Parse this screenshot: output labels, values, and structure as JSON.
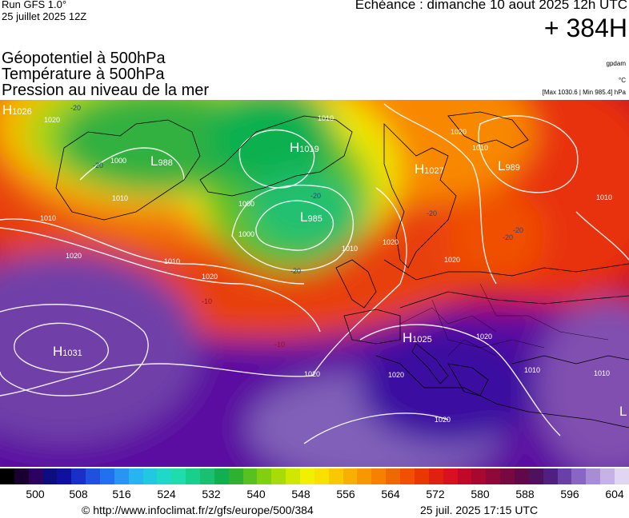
{
  "header": {
    "run": "Run GFS 1.0°",
    "run_date": "25 juillet 2025 12Z",
    "echeance": "Echéance : dimanche 10 aout 2025 12h UTC",
    "lead": "+ 384H",
    "title1": "Géopotentiel à 500hPa",
    "title2": "Température à 500hPa",
    "title3": "Pression au niveau de la mer",
    "unit_gp": "gpdam",
    "unit_t": "°C",
    "minmax": "[Max 1030.6 | Min 985.4] hPa"
  },
  "map": {
    "pressure_centers": [
      {
        "type": "H",
        "value": "1026"
      },
      {
        "type": "L",
        "value": "988"
      },
      {
        "type": "H",
        "value": "1019"
      },
      {
        "type": "L",
        "value": "985"
      },
      {
        "type": "H",
        "value": "1027"
      },
      {
        "type": "L",
        "value": "989"
      },
      {
        "type": "H",
        "value": "1031"
      },
      {
        "type": "H",
        "value": "1025"
      },
      {
        "type": "L",
        "value": ""
      }
    ],
    "isobar_labels": [
      "1010",
      "1010",
      "1010",
      "1000",
      "1020",
      "1020",
      "1000",
      "1010",
      "1010",
      "1020",
      "1020",
      "1020",
      "1010",
      "1010",
      "1000",
      "1020",
      "1020",
      "1010",
      "1020",
      "1010",
      "1020",
      "1020"
    ],
    "temp_labels": [
      "-20",
      "-20",
      "-20",
      "-20",
      "-10",
      "-10",
      "-20",
      "-20",
      "-20"
    ]
  },
  "colorbar": {
    "ticks": [
      "500",
      "508",
      "516",
      "524",
      "532",
      "540",
      "548",
      "556",
      "564",
      "572",
      "580",
      "588",
      "596",
      "604"
    ],
    "colors": [
      "#000000",
      "#1a0030",
      "#2b0060",
      "#0d0d80",
      "#1010a0",
      "#1830c8",
      "#2050e0",
      "#2070f0",
      "#2895f5",
      "#28b4f0",
      "#20c8e0",
      "#20d8c8",
      "#20dcaa",
      "#18d08c",
      "#18c070",
      "#10b050",
      "#30b030",
      "#58c020",
      "#80d010",
      "#a8dc08",
      "#d0e800",
      "#f0f000",
      "#f8e000",
      "#f8c800",
      "#f8b000",
      "#f89800",
      "#f88000",
      "#f06800",
      "#f05000",
      "#e83800",
      "#e02010",
      "#d81020",
      "#c00828",
      "#a80830",
      "#900838",
      "#780840",
      "#600848",
      "#501060",
      "#502080",
      "#6840a8",
      "#8a66c4",
      "#a88cd6",
      "#c6b2e6",
      "#e0d6f2"
    ]
  },
  "footer": {
    "url": "© http://www.infoclimat.fr/z/gfs/europe/500/384",
    "date": "25 juil. 2025 17:15 UTC"
  }
}
